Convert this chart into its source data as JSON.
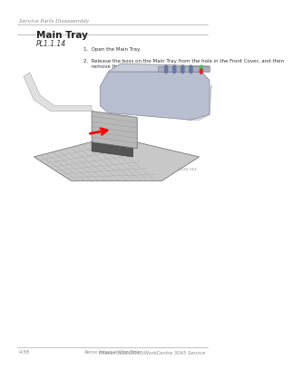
{
  "bg_color": "#ffffff",
  "header_text": "Service Parts Disassembly",
  "section_title": "Main Tray",
  "pl_label": "PL1.1.14",
  "instructions": [
    "1.  Open the Main Tray.",
    "2.  Release the boss on the Main Tray from the hole in the Front Cover, and then\n     remove the Tray."
  ],
  "footer_left": "4-58",
  "footer_center": "Xerox Internal Use Only",
  "footer_right": "Phaser 3010/3040/WorkCentre 3045 Service",
  "image_label": "s3040-064"
}
